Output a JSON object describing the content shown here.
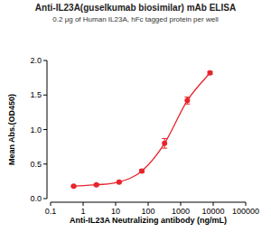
{
  "chart_data": {
    "type": "scatter",
    "title": "Anti-IL23A(guselkumab biosimilar) mAb ELISA",
    "subtitle": "0.2 μg of Human IL23A, hFc tagged protein per well",
    "x_label": "Anti-IL23A Neutralizing antibody (ng/mL)",
    "y_label": "Mean Abs.(OD450)",
    "log": "x",
    "x": [
      0.512,
      2.56,
      12.8,
      64,
      320,
      1600,
      8000
    ],
    "values": [
      0.18,
      0.2,
      0.24,
      0.4,
      0.8,
      1.42,
      1.82
    ],
    "errors": [
      0.01,
      0.01,
      0.01,
      0.02,
      0.07,
      0.05,
      0.02
    ],
    "color": "#e8242b",
    "marker": "circle",
    "line_style": "smooth",
    "xlim": [
      0.1,
      100000
    ],
    "xticks": [
      0.1,
      1,
      10,
      100,
      1000,
      10000,
      100000
    ],
    "ylim": [
      0,
      2
    ],
    "yticks": [
      {
        "value": 0,
        "label": "0.0"
      },
      0.5,
      {
        "value": 1,
        "label": "1.0"
      },
      1.5,
      {
        "value": 2,
        "label": "2.0"
      }
    ],
    "grid": false
  }
}
